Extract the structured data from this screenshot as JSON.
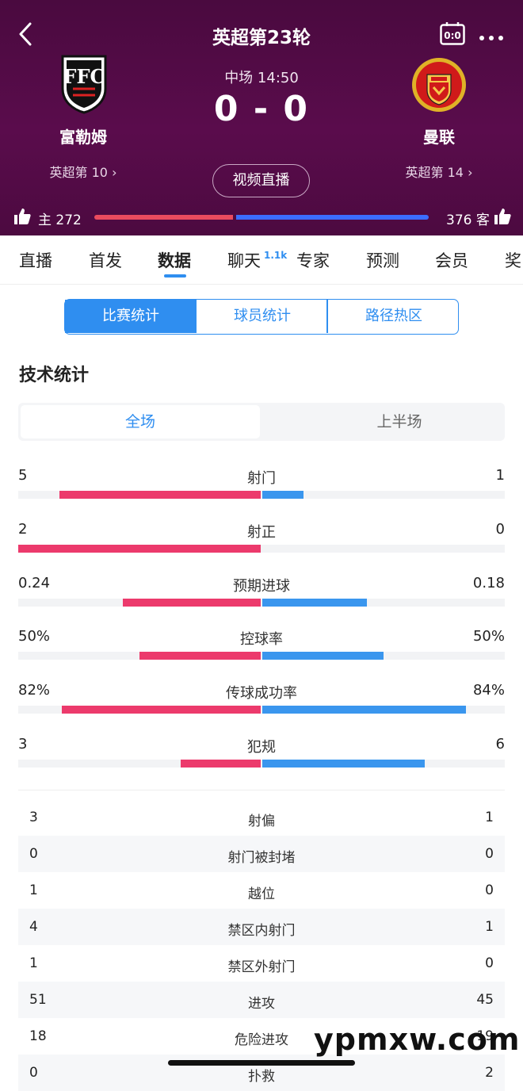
{
  "header": {
    "round_title": "英超第23轮",
    "score_icon_text": "0:0",
    "match_status": "中场 14:50",
    "score": "0 - 0",
    "home": {
      "name": "富勒姆",
      "rank": "英超第 10",
      "logo": "fulham-crest"
    },
    "away": {
      "name": "曼联",
      "rank": "英超第 14",
      "logo": "manchester-united-crest"
    },
    "video_button": "视频直播",
    "votes": {
      "home_label": "主 272",
      "away_label": "376 客",
      "home_share": 0.42
    }
  },
  "tabs": [
    {
      "label": "直播"
    },
    {
      "label": "首发"
    },
    {
      "label": "数据",
      "active": true
    },
    {
      "label": "聊天",
      "badge": "1.1k"
    },
    {
      "label": "专家"
    },
    {
      "label": "预测"
    },
    {
      "label": "会员"
    },
    {
      "label": "奖"
    }
  ],
  "segments": [
    "比赛统计",
    "球员统计",
    "路径热区"
  ],
  "section_title": "技术统计",
  "periods": [
    "全场",
    "上半场"
  ],
  "bar_stats": [
    {
      "label": "射门",
      "home": "5",
      "away": "1",
      "home_frac": 0.83,
      "away_frac": 0.17
    },
    {
      "label": "射正",
      "home": "2",
      "away": "0",
      "home_frac": 1.0,
      "away_frac": 0.0
    },
    {
      "label": "预期进球",
      "home": "0.24",
      "away": "0.18",
      "home_frac": 0.57,
      "away_frac": 0.43
    },
    {
      "label": "控球率",
      "home": "50%",
      "away": "50%",
      "home_frac": 0.5,
      "away_frac": 0.5
    },
    {
      "label": "传球成功率",
      "home": "82%",
      "away": "84%",
      "home_frac": 0.82,
      "away_frac": 0.84
    },
    {
      "label": "犯规",
      "home": "3",
      "away": "6",
      "home_frac": 0.33,
      "away_frac": 0.67
    }
  ],
  "table_stats": [
    {
      "label": "射偏",
      "home": "3",
      "away": "1"
    },
    {
      "label": "射门被封堵",
      "home": "0",
      "away": "0"
    },
    {
      "label": "越位",
      "home": "1",
      "away": "0"
    },
    {
      "label": "禁区内射门",
      "home": "4",
      "away": "1"
    },
    {
      "label": "禁区外射门",
      "home": "1",
      "away": "0"
    },
    {
      "label": "进攻",
      "home": "51",
      "away": "45"
    },
    {
      "label": "危险进攻",
      "home": "18",
      "away": "19"
    },
    {
      "label": "扑救",
      "home": "0",
      "away": "2"
    }
  ],
  "watermark": "ypmxw.com",
  "colors": {
    "header_bg": "#4f0b44",
    "accent": "#2f8ef0",
    "home_bar": "#ec3a6c",
    "away_bar": "#3a96ee"
  }
}
